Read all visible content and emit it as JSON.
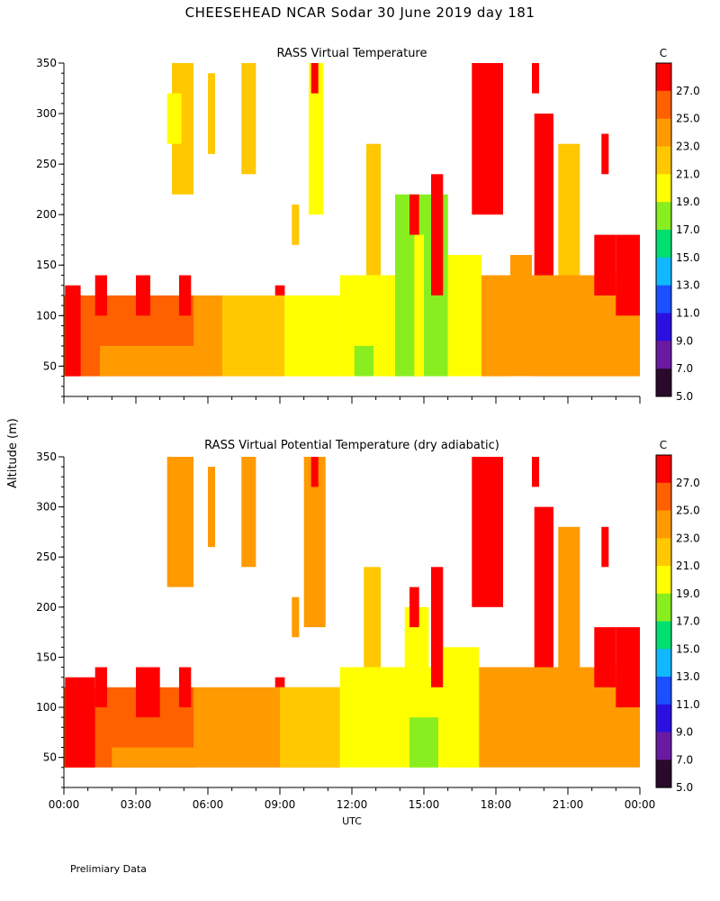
{
  "title": "CHEESEHEAD   NCAR Sodar   30 June 2019   day 181",
  "footer": "Prelimiary Data",
  "shared_ylabel": "Altitude (m)",
  "colorbar": {
    "unit": "C",
    "labels": [
      "27.0",
      "25.0",
      "23.0",
      "21.0",
      "19.0",
      "17.0",
      "15.0",
      "13.0",
      "11.0",
      "9.0",
      "7.0",
      "5.0"
    ],
    "bins": [
      {
        "lo": 5,
        "hi": 7,
        "color": "#2a0a2a"
      },
      {
        "lo": 7,
        "hi": 9,
        "color": "#6a1aa0"
      },
      {
        "lo": 9,
        "hi": 11,
        "color": "#2a10e0"
      },
      {
        "lo": 11,
        "hi": 13,
        "color": "#1a50ff"
      },
      {
        "lo": 13,
        "hi": 15,
        "color": "#10b8ff"
      },
      {
        "lo": 15,
        "hi": 17,
        "color": "#00e070"
      },
      {
        "lo": 17,
        "hi": 19,
        "color": "#88ee20"
      },
      {
        "lo": 19,
        "hi": 21,
        "color": "#ffff00"
      },
      {
        "lo": 21,
        "hi": 23,
        "color": "#ffc800"
      },
      {
        "lo": 23,
        "hi": 25,
        "color": "#ff9a00"
      },
      {
        "lo": 25,
        "hi": 27,
        "color": "#ff6000"
      },
      {
        "lo": 27,
        "hi": 29,
        "color": "#ff0000"
      }
    ]
  },
  "chart_data": [
    {
      "type": "heatmap",
      "title": "RASS Virtual Temperature",
      "xlabel": "",
      "ylabel": "Altitude (m)",
      "xlim_hours": [
        0,
        24
      ],
      "ylim": [
        20,
        350
      ],
      "yticks": [
        50,
        100,
        150,
        200,
        250,
        300,
        350
      ],
      "xticks": [],
      "regions": [
        {
          "t": [
            0,
            1.75
          ],
          "z": [
            40,
            120
          ],
          "value": 26
        },
        {
          "t": [
            0.05,
            0.7
          ],
          "z": [
            40,
            130
          ],
          "value": 28
        },
        {
          "t": [
            1.6,
            5.4
          ],
          "z": [
            40,
            120
          ],
          "value": 26
        },
        {
          "t": [
            1.3,
            1.8
          ],
          "z": [
            100,
            140
          ],
          "value": 28
        },
        {
          "t": [
            3,
            3.6
          ],
          "z": [
            100,
            140
          ],
          "value": 28
        },
        {
          "t": [
            4.8,
            5.3
          ],
          "z": [
            100,
            140
          ],
          "value": 28
        },
        {
          "t": [
            1.5,
            5.5
          ],
          "z": [
            40,
            70
          ],
          "value": 24
        },
        {
          "t": [
            5.4,
            6.6
          ],
          "z": [
            40,
            120
          ],
          "value": 24
        },
        {
          "t": [
            6.6,
            9.2
          ],
          "z": [
            40,
            120
          ],
          "value": 22
        },
        {
          "t": [
            8.8,
            9.2
          ],
          "z": [
            120,
            130
          ],
          "value": 28
        },
        {
          "t": [
            9.2,
            11.5
          ],
          "z": [
            40,
            120
          ],
          "value": 20
        },
        {
          "t": [
            11.5,
            13.2
          ],
          "z": [
            40,
            140
          ],
          "value": 20
        },
        {
          "t": [
            12.6,
            13.2
          ],
          "z": [
            140,
            270
          ],
          "value": 22
        },
        {
          "t": [
            13.2,
            13.8
          ],
          "z": [
            40,
            140
          ],
          "value": 20
        },
        {
          "t": [
            13.8,
            16
          ],
          "z": [
            40,
            220
          ],
          "value": 18
        },
        {
          "t": [
            12.1,
            12.9
          ],
          "z": [
            40,
            70
          ],
          "value": 18
        },
        {
          "t": [
            14.6,
            15
          ],
          "z": [
            40,
            180
          ],
          "value": 20
        },
        {
          "t": [
            15.3,
            15.8
          ],
          "z": [
            120,
            240
          ],
          "value": 28
        },
        {
          "t": [
            16,
            17
          ],
          "z": [
            40,
            160
          ],
          "value": 20
        },
        {
          "t": [
            16.5,
            17.4
          ],
          "z": [
            40,
            160
          ],
          "value": 20
        },
        {
          "t": [
            17.4,
            18.6
          ],
          "z": [
            40,
            140
          ],
          "value": 24
        },
        {
          "t": [
            18.6,
            19.5
          ],
          "z": [
            40,
            160
          ],
          "value": 24
        },
        {
          "t": [
            19.5,
            24
          ],
          "z": [
            40,
            140
          ],
          "value": 24
        },
        {
          "t": [
            20.6,
            21.5
          ],
          "z": [
            140,
            270
          ],
          "value": 22
        },
        {
          "t": [
            19.6,
            20.4
          ],
          "z": [
            140,
            300
          ],
          "value": 28
        },
        {
          "t": [
            22.1,
            23
          ],
          "z": [
            120,
            180
          ],
          "value": 28
        },
        {
          "t": [
            23,
            24
          ],
          "z": [
            100,
            180
          ],
          "value": 28
        },
        {
          "t": [
            17,
            18.3
          ],
          "z": [
            200,
            350
          ],
          "value": 28
        },
        {
          "t": [
            19.5,
            19.8
          ],
          "z": [
            320,
            350
          ],
          "value": 28
        },
        {
          "t": [
            22.4,
            22.7
          ],
          "z": [
            240,
            280
          ],
          "value": 28
        },
        {
          "t": [
            4.5,
            5.4
          ],
          "z": [
            220,
            350
          ],
          "value": 22
        },
        {
          "t": [
            4.3,
            4.9
          ],
          "z": [
            270,
            320
          ],
          "value": 20
        },
        {
          "t": [
            6,
            6.3
          ],
          "z": [
            260,
            340
          ],
          "value": 22
        },
        {
          "t": [
            7.4,
            8
          ],
          "z": [
            240,
            350
          ],
          "value": 22
        },
        {
          "t": [
            9.5,
            9.8
          ],
          "z": [
            170,
            210
          ],
          "value": 22
        },
        {
          "t": [
            10.2,
            10.8
          ],
          "z": [
            200,
            350
          ],
          "value": 20
        },
        {
          "t": [
            10.3,
            10.6
          ],
          "z": [
            320,
            350
          ],
          "value": 28
        },
        {
          "t": [
            14.4,
            14.8
          ],
          "z": [
            180,
            220
          ],
          "value": 28
        }
      ]
    },
    {
      "type": "heatmap",
      "title": "RASS Virtual Potential Temperature (dry adiabatic)",
      "xlabel": "UTC",
      "ylabel": "Altitude (m)",
      "xlim_hours": [
        0,
        24
      ],
      "ylim": [
        20,
        350
      ],
      "yticks": [
        50,
        100,
        150,
        200,
        250,
        300,
        350
      ],
      "xticks": [
        "00:00",
        "03:00",
        "06:00",
        "09:00",
        "12:00",
        "15:00",
        "18:00",
        "21:00",
        "00:00"
      ],
      "regions": [
        {
          "t": [
            0,
            5.4
          ],
          "z": [
            40,
            120
          ],
          "value": 26
        },
        {
          "t": [
            0.05,
            1.3
          ],
          "z": [
            40,
            130
          ],
          "value": 28
        },
        {
          "t": [
            1.3,
            1.8
          ],
          "z": [
            100,
            140
          ],
          "value": 28
        },
        {
          "t": [
            3,
            4
          ],
          "z": [
            90,
            140
          ],
          "value": 28
        },
        {
          "t": [
            4.8,
            5.3
          ],
          "z": [
            100,
            140
          ],
          "value": 28
        },
        {
          "t": [
            2,
            5.5
          ],
          "z": [
            40,
            60
          ],
          "value": 24
        },
        {
          "t": [
            5.4,
            11.5
          ],
          "z": [
            40,
            120
          ],
          "value": 24
        },
        {
          "t": [
            8.8,
            9.2
          ],
          "z": [
            120,
            130
          ],
          "value": 28
        },
        {
          "t": [
            9,
            11.5
          ],
          "z": [
            40,
            120
          ],
          "value": 22
        },
        {
          "t": [
            11.5,
            15.8
          ],
          "z": [
            40,
            140
          ],
          "value": 20
        },
        {
          "t": [
            12.5,
            13.2
          ],
          "z": [
            140,
            240
          ],
          "value": 22
        },
        {
          "t": [
            14.2,
            15.2
          ],
          "z": [
            140,
            200
          ],
          "value": 20
        },
        {
          "t": [
            14.4,
            15.6
          ],
          "z": [
            40,
            90
          ],
          "value": 18
        },
        {
          "t": [
            15.3,
            15.8
          ],
          "z": [
            120,
            240
          ],
          "value": 28
        },
        {
          "t": [
            15.8,
            17.3
          ],
          "z": [
            40,
            160
          ],
          "value": 20
        },
        {
          "t": [
            17.3,
            24
          ],
          "z": [
            40,
            140
          ],
          "value": 24
        },
        {
          "t": [
            19.6,
            20.4
          ],
          "z": [
            140,
            300
          ],
          "value": 28
        },
        {
          "t": [
            20.6,
            21.5
          ],
          "z": [
            140,
            280
          ],
          "value": 24
        },
        {
          "t": [
            22.1,
            23
          ],
          "z": [
            120,
            180
          ],
          "value": 28
        },
        {
          "t": [
            23,
            24
          ],
          "z": [
            100,
            180
          ],
          "value": 28
        },
        {
          "t": [
            17,
            18.3
          ],
          "z": [
            200,
            350
          ],
          "value": 28
        },
        {
          "t": [
            19.5,
            19.8
          ],
          "z": [
            320,
            350
          ],
          "value": 28
        },
        {
          "t": [
            22.4,
            22.7
          ],
          "z": [
            240,
            280
          ],
          "value": 28
        },
        {
          "t": [
            4.3,
            5.4
          ],
          "z": [
            220,
            350
          ],
          "value": 24
        },
        {
          "t": [
            6,
            6.3
          ],
          "z": [
            260,
            340
          ],
          "value": 24
        },
        {
          "t": [
            7.4,
            8
          ],
          "z": [
            240,
            350
          ],
          "value": 24
        },
        {
          "t": [
            9.5,
            9.8
          ],
          "z": [
            170,
            210
          ],
          "value": 24
        },
        {
          "t": [
            10,
            10.9
          ],
          "z": [
            180,
            350
          ],
          "value": 24
        },
        {
          "t": [
            10.3,
            10.6
          ],
          "z": [
            320,
            350
          ],
          "value": 28
        },
        {
          "t": [
            14.4,
            14.8
          ],
          "z": [
            180,
            220
          ],
          "value": 28
        }
      ]
    }
  ]
}
